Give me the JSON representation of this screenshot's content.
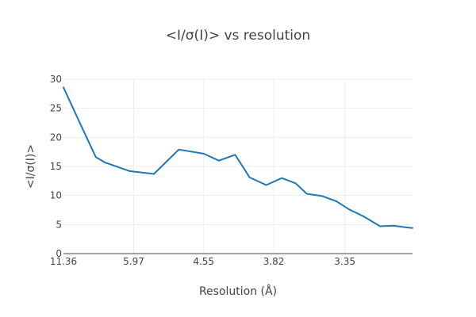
{
  "chart_data": {
    "type": "line",
    "title": "<I/σ(I)> vs resolution",
    "xlabel": "Resolution (Å)",
    "ylabel": "<I/σ(I)>",
    "x_tick_labels": [
      "11.36",
      "5.97",
      "4.55",
      "3.82",
      "3.35"
    ],
    "x_tick_values_inv_d2": [
      0.00775,
      0.02806,
      0.04829,
      0.06857,
      0.08911
    ],
    "x_range_inv_d2": [
      0.00775,
      0.1087
    ],
    "y_ticks": [
      0,
      5,
      10,
      15,
      20,
      25,
      30
    ],
    "ylim": [
      0,
      30
    ],
    "grid": true,
    "series": [
      {
        "color": "#1f77b4",
        "x_inv_d2": [
          0.00775,
          0.0124,
          0.0171,
          0.0197,
          0.0269,
          0.0339,
          0.0411,
          0.0483,
          0.0527,
          0.0574,
          0.0616,
          0.0664,
          0.0709,
          0.0749,
          0.0781,
          0.0826,
          0.0867,
          0.0904,
          0.0946,
          0.0993,
          0.1032,
          0.1071,
          0.1087
        ],
        "values": [
          28.6,
          22.6,
          16.6,
          15.7,
          14.2,
          13.7,
          17.9,
          17.2,
          16.0,
          17.0,
          13.1,
          11.8,
          13.0,
          12.1,
          10.3,
          9.9,
          9.0,
          7.6,
          6.4,
          4.7,
          4.8,
          4.5,
          4.4
        ]
      }
    ]
  }
}
